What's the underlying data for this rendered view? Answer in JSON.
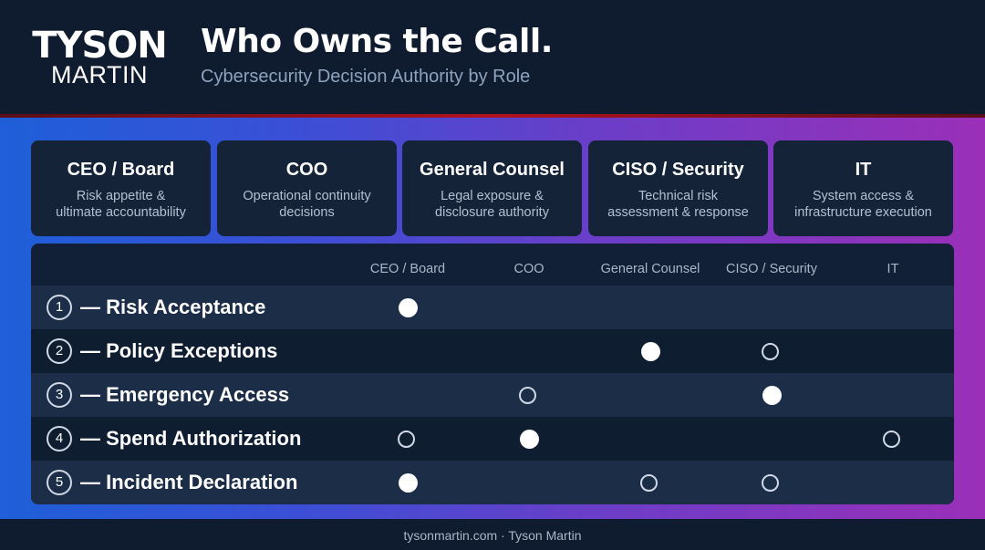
{
  "logo": {
    "line1": "TYSON",
    "line2": "MARTIN"
  },
  "title": "Who Owns the Call.",
  "subtitle": "Cybersecurity Decision Authority by Role",
  "roles": [
    {
      "title": "CEO / Board",
      "desc_line1": "Risk appetite &",
      "desc_line2": "ultimate accountability"
    },
    {
      "title": "COO",
      "desc_line1": "Operational continuity",
      "desc_line2": "decisions"
    },
    {
      "title": "General Counsel",
      "desc_line1": "Legal exposure &",
      "desc_line2": "disclosure authority"
    },
    {
      "title": "CISO / Security",
      "desc_line1": "Technical risk",
      "desc_line2": "assessment & response"
    },
    {
      "title": "IT",
      "desc_line1": "System access &",
      "desc_line2": "infrastructure execution"
    }
  ],
  "columns": [
    "CEO / Board",
    "COO",
    "General Counsel",
    "CISO / Security",
    "IT"
  ],
  "rows": [
    {
      "num": "1",
      "label": "— Risk Acceptance",
      "cells": [
        "filled",
        "",
        "",
        "",
        ""
      ]
    },
    {
      "num": "2",
      "label": "— Policy Exceptions",
      "cells": [
        "",
        "",
        "filled",
        "open",
        ""
      ]
    },
    {
      "num": "3",
      "label": "— Emergency Access",
      "cells": [
        "",
        "open",
        "",
        "filled",
        ""
      ]
    },
    {
      "num": "4",
      "label": "— Spend Authorization",
      "cells": [
        "open",
        "filled",
        "",
        "",
        "open"
      ]
    },
    {
      "num": "5",
      "label": "— Incident Declaration",
      "cells": [
        "filled",
        "",
        "open",
        "open",
        ""
      ]
    }
  ],
  "colors": {
    "header_bg": "#0f1b2e",
    "card_bg": "#142338",
    "accent_red": "#b0121e",
    "gradient_start": "#1e5fd8",
    "gradient_end": "#9b2fb8"
  },
  "footer": "tysonmartin.com  ·  Tyson Martin"
}
